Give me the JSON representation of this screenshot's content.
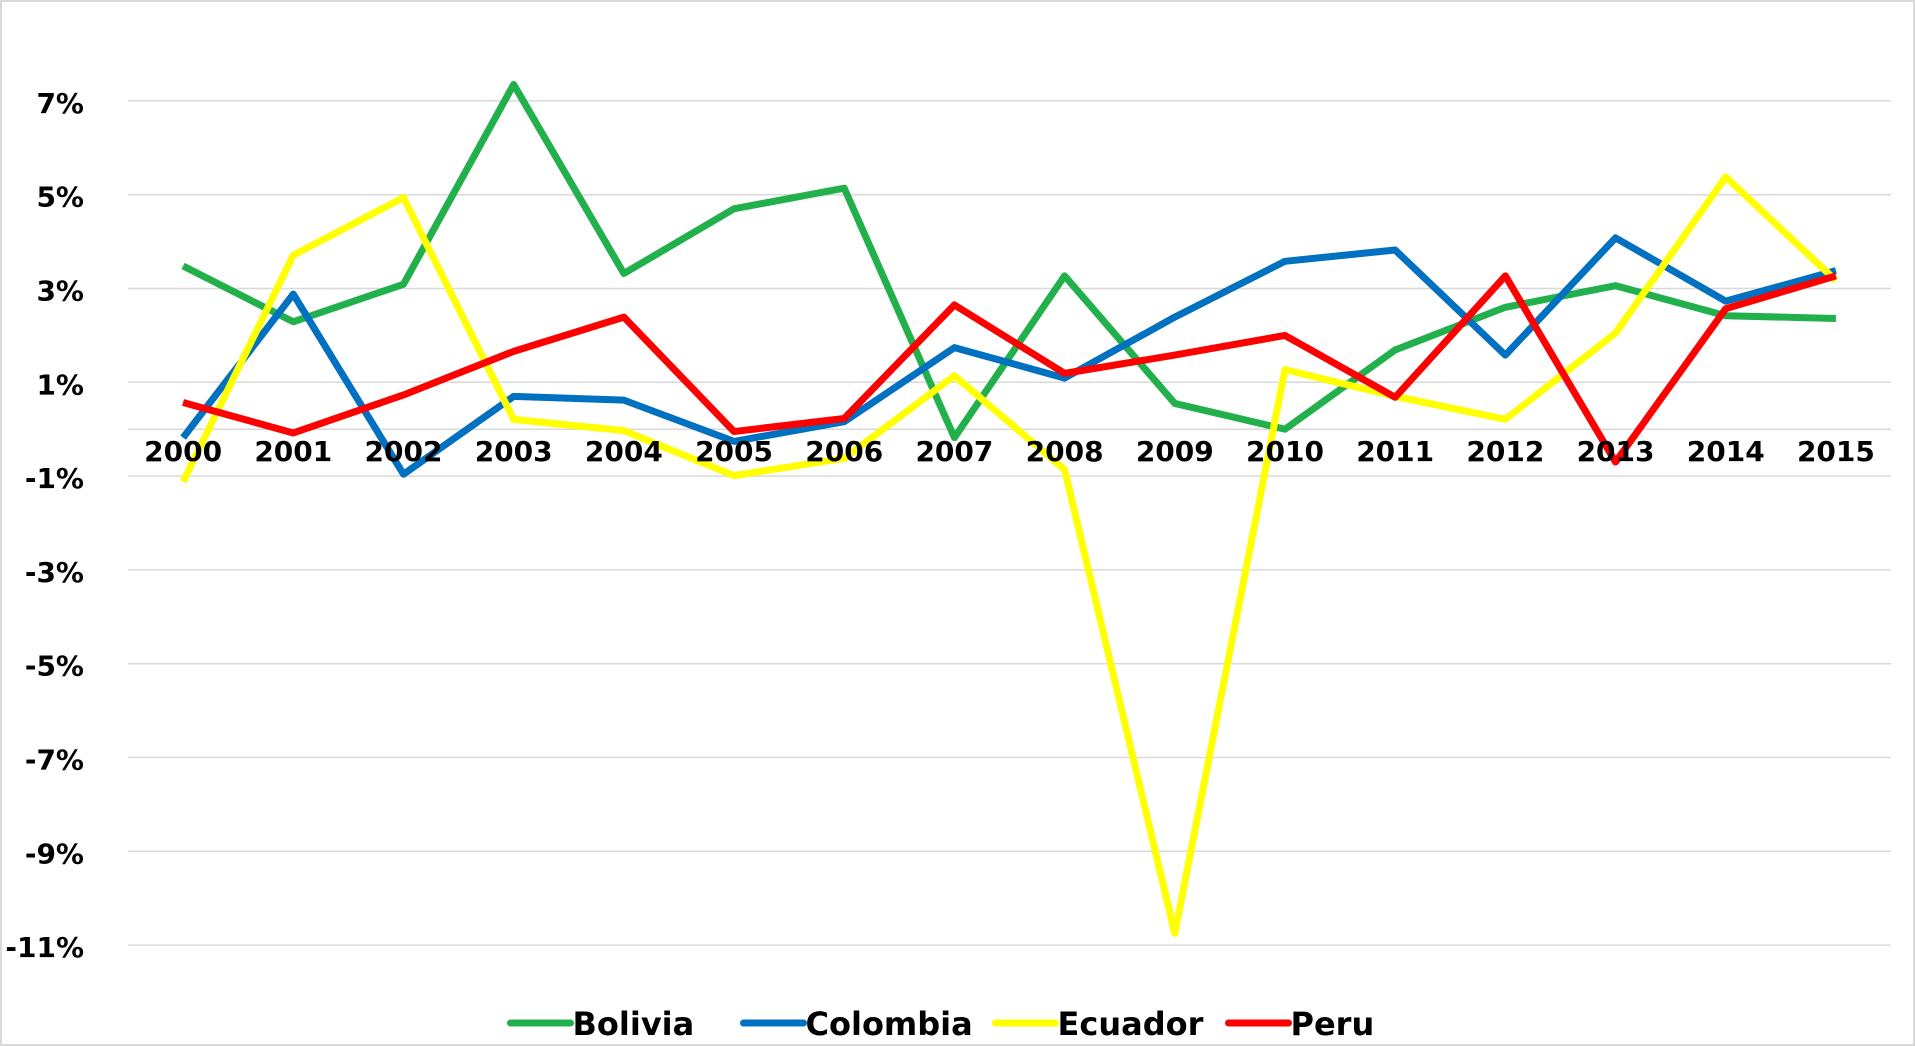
{
  "chart_data": {
    "type": "line",
    "categories": [
      "2000",
      "2001",
      "2002",
      "2003",
      "2004",
      "2005",
      "2006",
      "2007",
      "2008",
      "2009",
      "2010",
      "2011",
      "2012",
      "2013",
      "2014",
      "2015"
    ],
    "series": [
      {
        "name": "Bolivia",
        "color": "#22b04c",
        "values": [
          3.48,
          2.29,
          3.09,
          7.35,
          3.32,
          4.7,
          5.14,
          -0.18,
          3.27,
          0.55,
          0.0,
          1.69,
          2.6,
          3.06,
          2.42,
          2.36
        ]
      },
      {
        "name": "Colombia",
        "color": "#0070c0",
        "values": [
          -0.18,
          2.88,
          -0.96,
          0.7,
          0.62,
          -0.26,
          0.16,
          1.74,
          1.09,
          2.39,
          3.58,
          3.82,
          1.58,
          4.08,
          2.73,
          3.38
        ]
      },
      {
        "name": "Ecuador",
        "color": "#ffff00",
        "values": [
          -1.12,
          3.71,
          4.94,
          0.21,
          -0.03,
          -0.99,
          -0.62,
          1.14,
          -0.86,
          -10.75,
          1.27,
          0.7,
          0.21,
          2.05,
          5.38,
          3.17
        ]
      },
      {
        "name": "Peru",
        "color": "#ff0000",
        "values": [
          0.57,
          -0.08,
          0.73,
          1.66,
          2.39,
          -0.05,
          0.23,
          2.65,
          1.19,
          1.58,
          2.0,
          0.68,
          3.27,
          -0.7,
          2.57,
          3.27
        ]
      }
    ],
    "ylim": [
      -12,
      8
    ],
    "yticks": [
      {
        "value": 7,
        "label": "7%"
      },
      {
        "value": 5,
        "label": "5%"
      },
      {
        "value": 3,
        "label": "3%"
      },
      {
        "value": 1,
        "label": "1%"
      },
      {
        "value": -1,
        "label": "-1%"
      },
      {
        "value": -3,
        "label": "-3%"
      },
      {
        "value": -5,
        "label": "-5%"
      },
      {
        "value": -7,
        "label": "-7%"
      },
      {
        "value": -9,
        "label": "-9%"
      },
      {
        "value": -11,
        "label": "-11%"
      }
    ],
    "grid": true,
    "legend": "bottom"
  }
}
